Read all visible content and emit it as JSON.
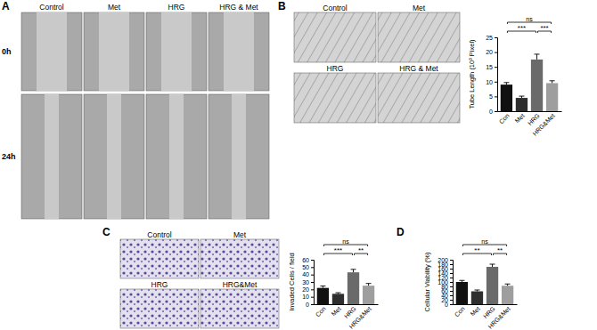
{
  "figure": {
    "panels": [
      {
        "letter": "A",
        "columns": [
          "Control",
          "Met",
          "HRG",
          "HRG & Met"
        ],
        "rows": [
          "0h",
          "24h"
        ]
      },
      {
        "letter": "B",
        "images": [
          "Control",
          "Met",
          "HRG",
          "HRG & Met"
        ]
      },
      {
        "letter": "C",
        "images": [
          "Control",
          "Met",
          "HRG",
          "HRG&Met"
        ]
      },
      {
        "letter": "D"
      }
    ]
  },
  "chart_data": [
    {
      "type": "bar",
      "y_label": "Tube Length (10³ Pixel)",
      "categories": [
        "Con",
        "Met",
        "HRG",
        "HRG&Met"
      ],
      "values": [
        9,
        4.5,
        17.5,
        9.5
      ],
      "errors": [
        0.7,
        0.6,
        1.8,
        0.8
      ],
      "colors": [
        "#111111",
        "#2e2e2e",
        "#6a6a6a",
        "#9e9e9e"
      ],
      "ylim": [
        0,
        25
      ],
      "yticks": [
        0,
        5,
        10,
        15,
        20,
        25
      ],
      "annotations": [
        {
          "text": "ns",
          "from": "Con",
          "to": "HRG&Met"
        },
        {
          "text": "***",
          "from": "Con",
          "to": "HRG"
        },
        {
          "text": "***",
          "from": "HRG",
          "to": "HRG&Met"
        }
      ]
    },
    {
      "type": "bar",
      "y_label": "Invaded Cells / field",
      "categories": [
        "Con",
        "Met",
        "HRG",
        "HRG&Met"
      ],
      "values": [
        22,
        14,
        43,
        25
      ],
      "errors": [
        2.5,
        1.5,
        4,
        3
      ],
      "colors": [
        "#111111",
        "#2e2e2e",
        "#6a6a6a",
        "#9e9e9e"
      ],
      "ylim": [
        0,
        60
      ],
      "yticks": [
        0,
        10,
        20,
        30,
        40,
        50,
        60
      ],
      "annotations": [
        {
          "text": "ns",
          "from": "Con",
          "to": "HRG&Met"
        },
        {
          "text": "***",
          "from": "Con",
          "to": "HRG"
        },
        {
          "text": "**",
          "from": "HRG",
          "to": "HRG&Met"
        }
      ]
    },
    {
      "type": "bar",
      "y_label": "Cellular Viability (%)",
      "categories": [
        "Con",
        "Met",
        "HRG",
        "HRG&Met"
      ],
      "values": [
        100,
        58,
        168,
        83
      ],
      "errors": [
        7,
        6,
        12,
        8
      ],
      "colors": [
        "#111111",
        "#2e2e2e",
        "#6a6a6a",
        "#9e9e9e"
      ],
      "ylim": [
        0,
        200
      ],
      "yticks": [
        0,
        20,
        40,
        60,
        80,
        100,
        120,
        140,
        160,
        180,
        200
      ],
      "annotations": [
        {
          "text": "ns",
          "from": "Con",
          "to": "HRG&Met"
        },
        {
          "text": "**",
          "from": "Con",
          "to": "HRG"
        },
        {
          "text": "**",
          "from": "HRG",
          "to": "HRG&Met"
        }
      ]
    }
  ]
}
